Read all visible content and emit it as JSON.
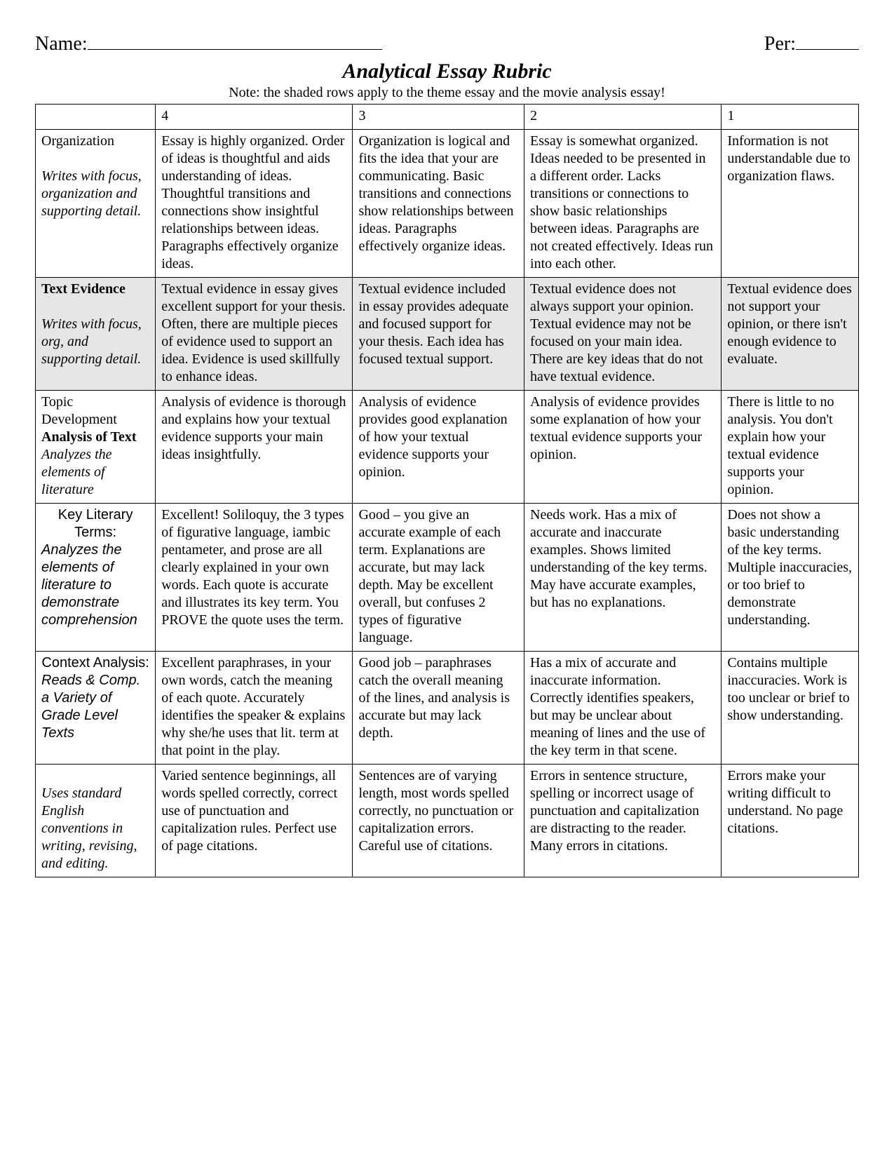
{
  "header": {
    "name_label": "Name:",
    "per_label": "Per:"
  },
  "title": "Analytical Essay Rubric",
  "note": "Note: the shaded rows apply to the theme essay and the movie analysis essay!",
  "scores": {
    "s4": "4",
    "s3": "3",
    "s2": "2",
    "s1": "1"
  },
  "rows": {
    "org": {
      "label_main": "Organization",
      "label_sub": "Writes with focus, organization and supporting detail.",
      "c4": "Essay is highly organized. Order of ideas is thoughtful and aids understanding of ideas. Thoughtful transitions and connections show insightful relationships between ideas. Paragraphs effectively organize ideas.",
      "c3": "Organization is logical and fits the idea that your are communicating. Basic transitions and connections show relationships between ideas. Paragraphs effectively organize ideas.",
      "c2": "Essay is somewhat organized. Ideas needed to be presented in a different order. Lacks transitions or connections to show basic relationships between ideas. Paragraphs are not created effectively. Ideas run into each other.",
      "c1": "Information is not understandable due to organization flaws."
    },
    "evidence": {
      "label_main": "Text Evidence",
      "label_sub": "Writes with focus, org, and supporting detail.",
      "c4": "Textual evidence in essay gives excellent support for your thesis. Often, there are multiple pieces of evidence used to support an idea. Evidence is used skillfully to enhance ideas.",
      "c3": "Textual evidence included in essay provides adequate and focused support for your thesis. Each idea has focused textual support.",
      "c2": "Textual evidence does not always support your opinion. Textual evidence may not be focused on your main idea. There are key ideas that do not have textual evidence.",
      "c1": "Textual evidence does not support your opinion, or there isn't enough evidence to evaluate."
    },
    "topic": {
      "label_line1": "Topic Development",
      "label_bold": "Analysis of Text",
      "label_ital": "Analyzes the elements of literature",
      "c4": "Analysis of evidence is thorough and explains how your textual evidence supports your main ideas insightfully.",
      "c3": "Analysis of evidence provides good explanation of how your textual evidence supports your opinion.",
      "c2": "Analysis of evidence provides some explanation of how your textual evidence supports your opinion.",
      "c1": "There is little to no analysis. You don't explain how your textual evidence supports your opinion."
    },
    "keylit": {
      "label_line1": "Key Literary Terms:",
      "label_ital": "Analyzes the elements of literature to demonstrate comprehension",
      "c4": "Excellent!  Soliloquy, the 3 types of figurative language, iambic pentameter, and prose are all clearly explained in your own words. Each quote is accurate and illustrates its key term. You PROVE the quote uses the term.",
      "c3": "Good – you give an accurate example of each term. Explanations are accurate, but may lack depth. May be excellent overall, but confuses 2 types of figurative language.",
      "c2": "Needs work.  Has a mix of accurate and inaccurate examples.  Shows limited understanding of the key terms.  May have accurate examples, but has no explanations.",
      "c1": "Does not show a basic understanding of the key terms. Multiple inaccuracies, or too brief to demonstrate understanding."
    },
    "context": {
      "label_line1": "Context Analysis:",
      "label_ital": "Reads & Comp. a Variety of Grade Level Texts",
      "c4": "Excellent paraphrases, in your own words, catch the meaning of each quote. Accurately identifies the speaker & explains why she/he uses that lit. term at that point in the play.",
      "c3": "Good job – paraphrases catch the overall meaning of the lines, and analysis is accurate but may lack depth.",
      "c2": "Has a mix of accurate and inaccurate information. Correctly identifies speakers, but may be unclear about meaning of lines and the use of the key term in that scene.",
      "c1": "Contains multiple inaccuracies. Work is too unclear or brief to show understanding."
    },
    "conv": {
      "label_ital": "Uses standard English conventions in writing, revising, and editing.",
      "c4": "Varied sentence beginnings, all words spelled correctly, correct use of punctuation and capitalization rules. Perfect use of page citations.",
      "c3": "Sentences are of varying length, most words spelled correctly, no punctuation or capitalization errors. Careful use of citations.",
      "c2": "Errors in sentence structure, spelling or incorrect usage of punctuation and capitalization are distracting to the reader. Many errors in citations.",
      "c1": "Errors make your writing difficult to understand. No page citations."
    }
  }
}
